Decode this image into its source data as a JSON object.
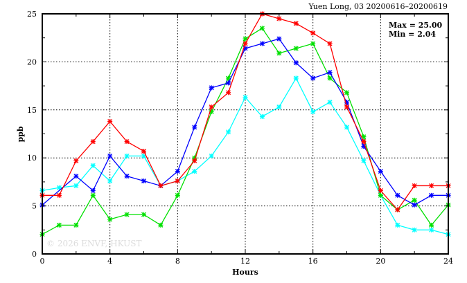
{
  "chart_data": {
    "type": "line",
    "title": "Yuen Long, 03 20200616–20200619",
    "xlabel": "Hours",
    "ylabel": "ppb",
    "xlim": [
      0,
      24
    ],
    "ylim": [
      0,
      25
    ],
    "xticks": [
      0,
      4,
      8,
      12,
      16,
      20,
      24
    ],
    "yticks": [
      0,
      5,
      10,
      15,
      20,
      25
    ],
    "grid": true,
    "stats": {
      "max": "Max = 25.00",
      "min": "Min =  2.04"
    },
    "watermark": "© 2026  ENVF, HKUST",
    "x": [
      0,
      1,
      2,
      3,
      4,
      5,
      6,
      7,
      8,
      9,
      10,
      11,
      12,
      13,
      14,
      15,
      16,
      17,
      18,
      19,
      20,
      21,
      22,
      23,
      24
    ],
    "series": [
      {
        "name": "cyan",
        "color": "#00ffff",
        "values": [
          6.6,
          6.9,
          7.1,
          9.2,
          7.6,
          10.2,
          10.2,
          7.1,
          7.6,
          8.6,
          10.2,
          12.7,
          16.3,
          14.3,
          15.3,
          18.3,
          14.8,
          15.8,
          13.2,
          9.7,
          6.1,
          3.0,
          2.5,
          2.5,
          2.04
        ]
      },
      {
        "name": "green",
        "color": "#00e000",
        "values": [
          2.04,
          3.0,
          3.0,
          6.1,
          3.6,
          4.1,
          4.1,
          3.0,
          6.1,
          10.0,
          14.8,
          18.3,
          22.4,
          23.5,
          20.9,
          21.4,
          21.9,
          18.3,
          16.8,
          12.2,
          6.1,
          4.6,
          5.6,
          3.0,
          5.1
        ]
      },
      {
        "name": "blue",
        "color": "#0000ff",
        "values": [
          5.1,
          null,
          8.1,
          6.6,
          10.2,
          8.1,
          7.6,
          7.1,
          8.6,
          13.2,
          17.3,
          17.8,
          21.4,
          21.9,
          22.4,
          19.9,
          18.3,
          18.9,
          15.8,
          11.2,
          8.6,
          6.1,
          5.1,
          6.1,
          6.1
        ]
      },
      {
        "name": "red",
        "color": "#ff0000",
        "values": [
          6.1,
          6.1,
          9.7,
          11.7,
          13.8,
          11.7,
          10.7,
          7.1,
          7.6,
          9.7,
          15.3,
          16.8,
          21.9,
          25.0,
          24.5,
          24.0,
          23.0,
          21.9,
          15.3,
          11.7,
          6.6,
          4.6,
          7.1,
          7.1,
          7.1
        ]
      }
    ]
  }
}
